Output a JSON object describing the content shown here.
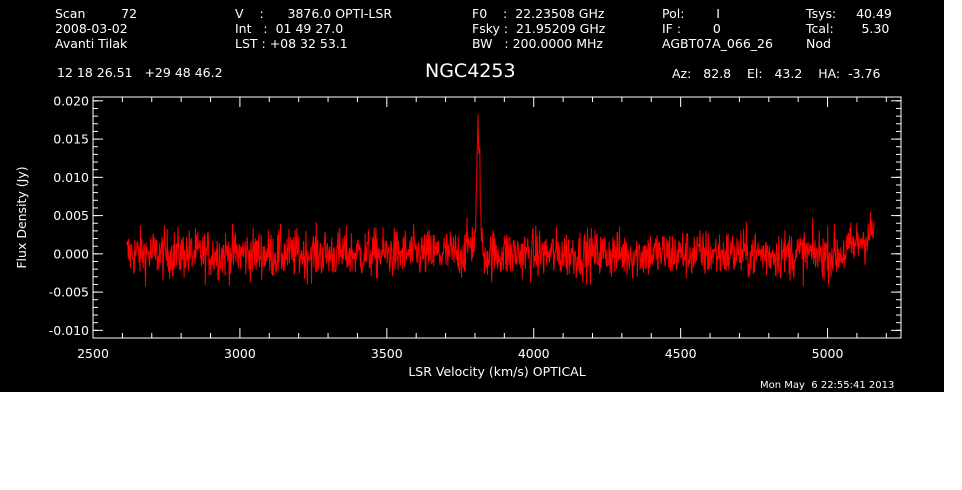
{
  "header": {
    "col1": [
      "Scan         72",
      "2008-03-02",
      "Avanti Tilak"
    ],
    "col2": [
      "V    :      3876.0 OPTI-LSR",
      "Int   :  01 49 27.0",
      "LST : +08 32 53.1"
    ],
    "col3": [
      "F0    :  22.23508 GHz",
      "Fsky :  21.95209 GHz",
      "BW   : 200.0000 MHz"
    ],
    "col4": [
      "Pol:        I",
      "IF :        0",
      "AGBT07A_066_26"
    ],
    "col5": [
      "Tsys:     40.49",
      "Tcal:       5.30",
      "Nod"
    ],
    "coords": "12 18 26.51   +29 48 46.2",
    "source": "NGC4253",
    "azel": "Az:   82.8    El:   43.2    HA:  -3.76",
    "timestamp": "Mon May  6 22:55:41 2013"
  },
  "chart_data": {
    "type": "line",
    "title": "NGC4253",
    "xlabel": "LSR Velocity (km/s) OPTICAL",
    "ylabel": "Flux Density (Jy)",
    "xlim": [
      2500,
      5250
    ],
    "ylim": [
      -0.011,
      0.0205
    ],
    "xticks": [
      2500,
      3000,
      3500,
      4000,
      4500,
      5000
    ],
    "xtick_labels": [
      "2500",
      "3000",
      "3500",
      "4000",
      "4500",
      "5000"
    ],
    "yticks": [
      -0.01,
      -0.005,
      0.0,
      0.005,
      0.01,
      0.015,
      0.02
    ],
    "ytick_labels": [
      "-0.010",
      "-0.005",
      "0.000",
      "0.005",
      "0.010",
      "0.015",
      "0.020"
    ],
    "grid": false,
    "line_color": "#ff0000",
    "series": [
      {
        "x_start": 2615,
        "x_end": 5160,
        "noise_rms": 0.0016,
        "baseline": 0.0,
        "peak_x": 3812,
        "peak_y": 0.0165,
        "edge_rise_right": 0.003
      }
    ]
  }
}
